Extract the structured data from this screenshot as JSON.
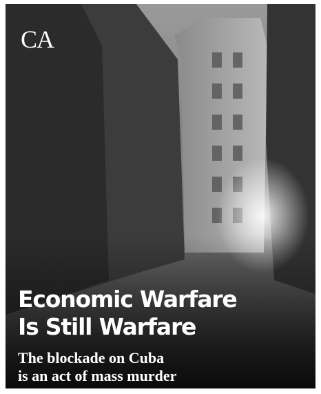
{
  "logo": "CA",
  "headline": [
    "Economic Warfare",
    "Is Still Warfare"
  ],
  "subhead": [
    "The blockade on Cuba",
    "is an act of mass murder"
  ]
}
